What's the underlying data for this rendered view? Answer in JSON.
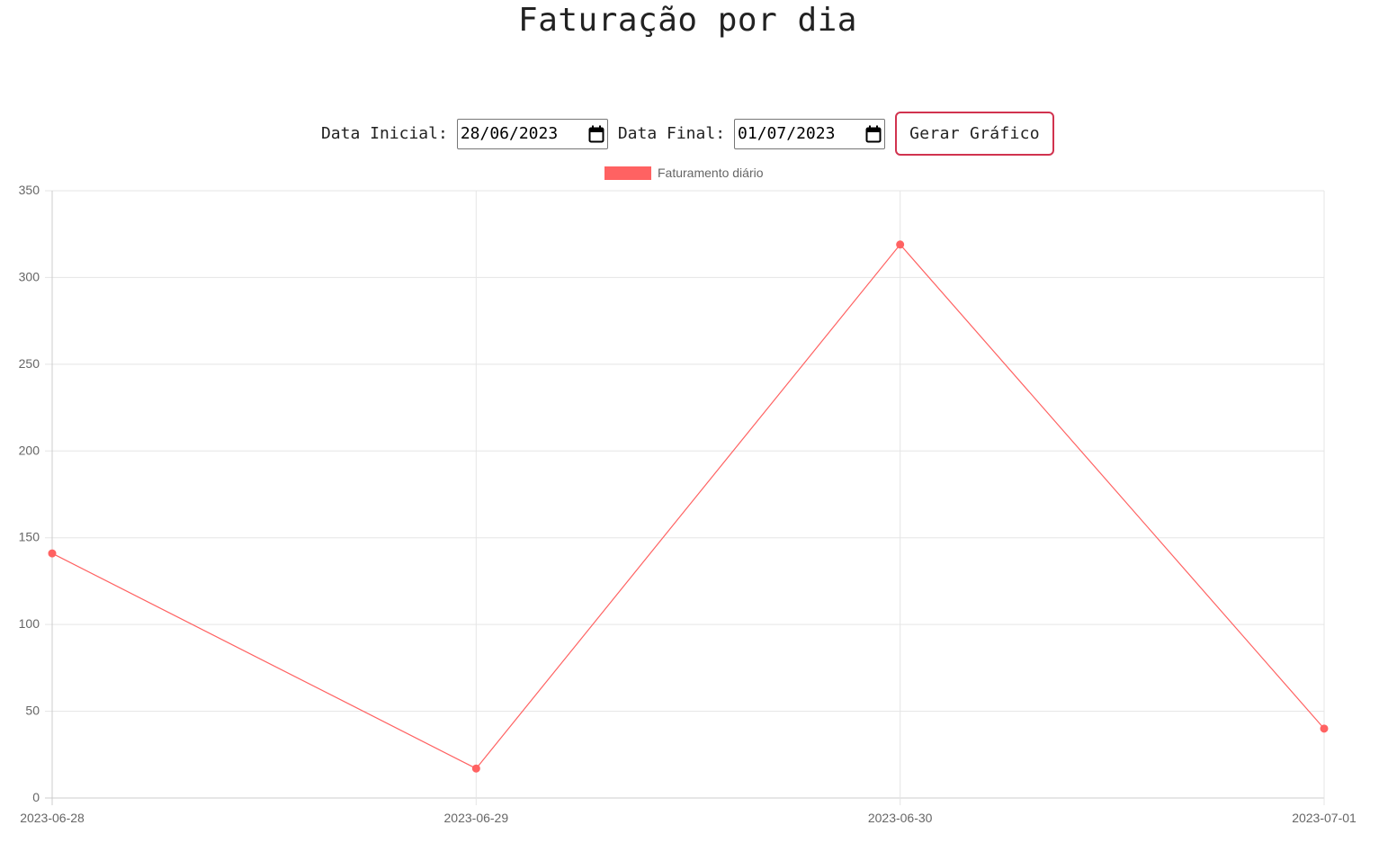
{
  "page": {
    "title": "Faturação por dia"
  },
  "controls": {
    "start_label": "Data Inicial:",
    "start_value": "28/06/2023",
    "end_label": "Data Final:",
    "end_value": "01/07/2023",
    "button_label": "Gerar Gráfico"
  },
  "chart_data": {
    "type": "line",
    "title": "",
    "xlabel": "",
    "ylabel": "",
    "categories": [
      "2023-06-28",
      "2023-06-29",
      "2023-06-30",
      "2023-07-01"
    ],
    "series": [
      {
        "name": "Faturamento diário",
        "color": "#ff6262",
        "values": [
          141,
          17,
          319,
          40
        ]
      }
    ],
    "ylim": [
      0,
      350
    ],
    "yticks": [
      0,
      50,
      100,
      150,
      200,
      250,
      300,
      350
    ],
    "grid": true,
    "legend": "top-center",
    "colors": {
      "grid": "#e5e5e5",
      "tick_text": "#666666",
      "button_border": "#d1334f"
    }
  }
}
